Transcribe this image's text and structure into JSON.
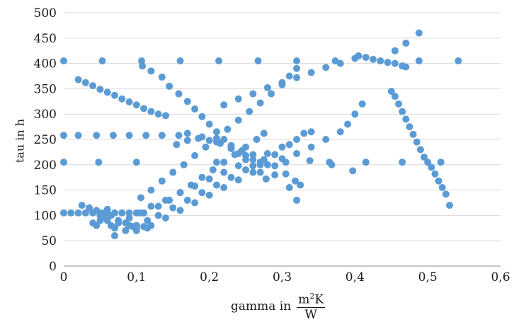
{
  "chart_data": {
    "type": "scatter",
    "xlabel_prefix": "gamma in",
    "xlabel_unit_numerator": "m",
    "xlabel_unit_exponent": "2",
    "xlabel_unit_numerator_tail": "K",
    "xlabel_unit_denominator": "W",
    "ylabel": "tau in h",
    "xlim": [
      0,
      0.6
    ],
    "ylim": [
      0,
      500
    ],
    "x_ticks": [
      "0",
      "0,1",
      "0,2",
      "0,3",
      "0,4",
      "0,5",
      "0,6"
    ],
    "y_ticks": [
      "0",
      "50",
      "100",
      "150",
      "200",
      "250",
      "300",
      "350",
      "400",
      "450",
      "500"
    ],
    "grid": "horizontal",
    "marker_color": "#5b9bd5",
    "series": [
      {
        "points": [
          [
            0,
            405
          ],
          [
            0.053,
            405
          ],
          [
            0.107,
            405
          ],
          [
            0.16,
            405
          ],
          [
            0.213,
            405
          ],
          [
            0.267,
            405
          ],
          [
            0.32,
            405
          ],
          [
            0.373,
            405
          ],
          [
            0.488,
            405
          ],
          [
            0.542,
            405
          ],
          [
            0,
            258
          ],
          [
            0.02,
            258
          ],
          [
            0.045,
            258
          ],
          [
            0.068,
            258
          ],
          [
            0.09,
            258
          ],
          [
            0.113,
            258
          ],
          [
            0.135,
            258
          ],
          [
            0.158,
            258
          ],
          [
            0,
            205
          ],
          [
            0.048,
            205
          ],
          [
            0.1,
            205
          ],
          [
            0.21,
            205
          ],
          [
            0.305,
            205
          ],
          [
            0.338,
            208
          ],
          [
            0.365,
            205
          ],
          [
            0.368,
            200
          ],
          [
            0.397,
            188
          ],
          [
            0.415,
            205
          ],
          [
            0.465,
            205
          ],
          [
            0.518,
            205
          ],
          [
            0,
            105
          ],
          [
            0.01,
            105
          ],
          [
            0.02,
            105
          ],
          [
            0.03,
            105
          ],
          [
            0.04,
            105
          ],
          [
            0.05,
            105
          ],
          [
            0.06,
            105
          ],
          [
            0.07,
            105
          ],
          [
            0.08,
            105
          ],
          [
            0.09,
            105
          ],
          [
            0.1,
            105
          ],
          [
            0.11,
            105
          ],
          [
            0.02,
            368
          ],
          [
            0.03,
            362
          ],
          [
            0.04,
            356
          ],
          [
            0.05,
            349
          ],
          [
            0.06,
            343
          ],
          [
            0.07,
            337
          ],
          [
            0.08,
            330
          ],
          [
            0.09,
            324
          ],
          [
            0.1,
            318
          ],
          [
            0.11,
            311
          ],
          [
            0.12,
            305
          ],
          [
            0.13,
            300
          ],
          [
            0.14,
            297
          ],
          [
            0.108,
            395
          ],
          [
            0.12,
            385
          ],
          [
            0.135,
            373
          ],
          [
            0.145,
            355
          ],
          [
            0.158,
            340
          ],
          [
            0.17,
            325
          ],
          [
            0.18,
            310
          ],
          [
            0.19,
            295
          ],
          [
            0.2,
            280
          ],
          [
            0.21,
            265
          ],
          [
            0.22,
            250
          ],
          [
            0.23,
            238
          ],
          [
            0.24,
            222
          ],
          [
            0.25,
            210
          ],
          [
            0.26,
            198
          ],
          [
            0.27,
            185
          ],
          [
            0.278,
            172
          ],
          [
            0.106,
            135
          ],
          [
            0.12,
            150
          ],
          [
            0.135,
            168
          ],
          [
            0.15,
            185
          ],
          [
            0.165,
            200
          ],
          [
            0.18,
            218
          ],
          [
            0.195,
            235
          ],
          [
            0.21,
            252
          ],
          [
            0.225,
            270
          ],
          [
            0.24,
            288
          ],
          [
            0.255,
            305
          ],
          [
            0.27,
            322
          ],
          [
            0.285,
            340
          ],
          [
            0.3,
            358
          ],
          [
            0.31,
            375
          ],
          [
            0.32,
            390
          ],
          [
            0.13,
            118
          ],
          [
            0.145,
            130
          ],
          [
            0.16,
            145
          ],
          [
            0.175,
            160
          ],
          [
            0.19,
            175
          ],
          [
            0.205,
            190
          ],
          [
            0.22,
            205
          ],
          [
            0.235,
            220
          ],
          [
            0.25,
            235
          ],
          [
            0.265,
            250
          ],
          [
            0.275,
            262
          ],
          [
            0.075,
            85
          ],
          [
            0.09,
            95
          ],
          [
            0.105,
            105
          ],
          [
            0.12,
            118
          ],
          [
            0.14,
            130
          ],
          [
            0.16,
            145
          ],
          [
            0.18,
            158
          ],
          [
            0.2,
            172
          ],
          [
            0.22,
            185
          ],
          [
            0.24,
            198
          ],
          [
            0.26,
            210
          ],
          [
            0.28,
            222
          ],
          [
            0.3,
            235
          ],
          [
            0.32,
            250
          ],
          [
            0.34,
            265
          ],
          [
            0.07,
            60
          ],
          [
            0.085,
            70
          ],
          [
            0.1,
            80
          ],
          [
            0.115,
            90
          ],
          [
            0.13,
            100
          ],
          [
            0.15,
            115
          ],
          [
            0.17,
            130
          ],
          [
            0.19,
            145
          ],
          [
            0.21,
            160
          ],
          [
            0.23,
            175
          ],
          [
            0.25,
            190
          ],
          [
            0.27,
            205
          ],
          [
            0.29,
            220
          ],
          [
            0.31,
            240
          ],
          [
            0.33,
            262
          ],
          [
            0.1,
            70
          ],
          [
            0.12,
            80
          ],
          [
            0.14,
            95
          ],
          [
            0.16,
            110
          ],
          [
            0.18,
            125
          ],
          [
            0.2,
            140
          ],
          [
            0.22,
            155
          ],
          [
            0.24,
            170
          ],
          [
            0.26,
            185
          ],
          [
            0.28,
            200
          ],
          [
            0.3,
            212
          ],
          [
            0.32,
            222
          ],
          [
            0.34,
            235
          ],
          [
            0.36,
            250
          ],
          [
            0.38,
            265
          ],
          [
            0.39,
            280
          ],
          [
            0.4,
            300
          ],
          [
            0.41,
            320
          ],
          [
            0.22,
            318
          ],
          [
            0.24,
            330
          ],
          [
            0.26,
            340
          ],
          [
            0.28,
            352
          ],
          [
            0.3,
            362
          ],
          [
            0.32,
            372
          ],
          [
            0.34,
            382
          ],
          [
            0.36,
            392
          ],
          [
            0.38,
            400
          ],
          [
            0.4,
            410
          ],
          [
            0.155,
            240
          ],
          [
            0.17,
            248
          ],
          [
            0.185,
            252
          ],
          [
            0.2,
            248
          ],
          [
            0.215,
            242
          ],
          [
            0.23,
            235
          ],
          [
            0.245,
            228
          ],
          [
            0.26,
            220
          ],
          [
            0.275,
            210
          ],
          [
            0.29,
            198
          ],
          [
            0.305,
            182
          ],
          [
            0.318,
            168
          ],
          [
            0.325,
            160
          ],
          [
            0.17,
            262
          ],
          [
            0.19,
            255
          ],
          [
            0.21,
            245
          ],
          [
            0.23,
            232
          ],
          [
            0.25,
            218
          ],
          [
            0.27,
            200
          ],
          [
            0.29,
            180
          ],
          [
            0.31,
            155
          ],
          [
            0.32,
            130
          ],
          [
            0.025,
            120
          ],
          [
            0.035,
            115
          ],
          [
            0.045,
            110
          ],
          [
            0.05,
            100
          ],
          [
            0.055,
            95
          ],
          [
            0.06,
            90
          ],
          [
            0.065,
            80
          ],
          [
            0.07,
            75
          ],
          [
            0.04,
            85
          ],
          [
            0.045,
            80
          ],
          [
            0.05,
            90
          ],
          [
            0.055,
            105
          ],
          [
            0.06,
            112
          ],
          [
            0.065,
            100
          ],
          [
            0.075,
            90
          ],
          [
            0.085,
            85
          ],
          [
            0.09,
            80
          ],
          [
            0.095,
            78
          ],
          [
            0.1,
            75
          ],
          [
            0.11,
            78
          ],
          [
            0.115,
            75
          ],
          [
            0.405,
            415
          ],
          [
            0.415,
            412
          ],
          [
            0.425,
            408
          ],
          [
            0.435,
            405
          ],
          [
            0.445,
            402
          ],
          [
            0.455,
            400
          ],
          [
            0.465,
            395
          ],
          [
            0.47,
            393
          ],
          [
            0.455,
            425
          ],
          [
            0.47,
            440
          ],
          [
            0.488,
            460
          ],
          [
            0.45,
            345
          ],
          [
            0.455,
            335
          ],
          [
            0.46,
            320
          ],
          [
            0.465,
            305
          ],
          [
            0.47,
            290
          ],
          [
            0.475,
            275
          ],
          [
            0.48,
            260
          ],
          [
            0.485,
            245
          ],
          [
            0.49,
            230
          ],
          [
            0.495,
            215
          ],
          [
            0.5,
            205
          ],
          [
            0.505,
            195
          ],
          [
            0.51,
            182
          ],
          [
            0.515,
            168
          ],
          [
            0.52,
            155
          ],
          [
            0.525,
            142
          ],
          [
            0.53,
            120
          ]
        ]
      }
    ]
  }
}
